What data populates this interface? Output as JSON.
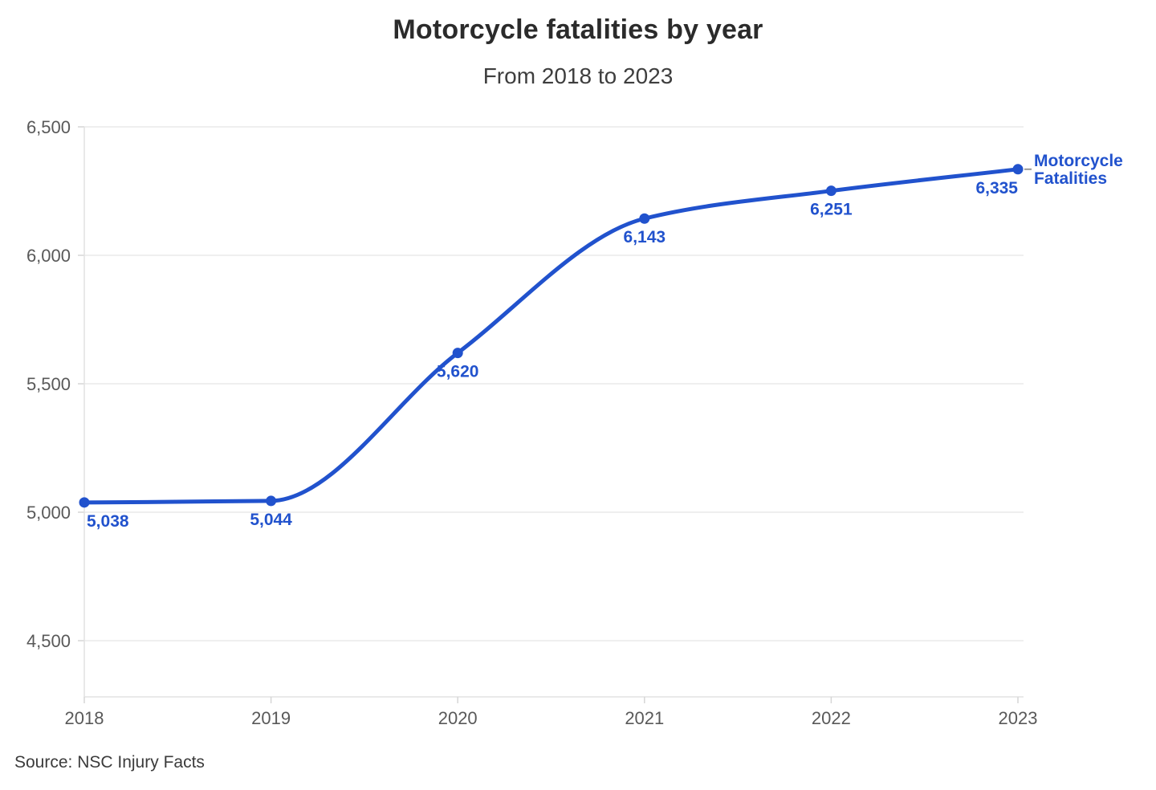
{
  "header": {
    "title": "Motorcycle fatalities by year",
    "subtitle": "From 2018 to 2023"
  },
  "footer": {
    "source": "Source: NSC Injury Facts"
  },
  "chart_data": {
    "type": "line",
    "title": "Motorcycle fatalities by year",
    "subtitle": "From 2018 to 2023",
    "categories": [
      "2018",
      "2019",
      "2020",
      "2021",
      "2022",
      "2023"
    ],
    "series": [
      {
        "name": "Motorcycle Fatalities",
        "name_lines": [
          "Motorcycle",
          "Fatalities"
        ],
        "values": [
          5038,
          5044,
          5620,
          6143,
          6251,
          6335
        ],
        "point_labels": [
          "5,038",
          "5,044",
          "5,620",
          "6,143",
          "6,251",
          "6,335"
        ],
        "color": "#2152cd"
      }
    ],
    "xlabel": "",
    "ylabel": "",
    "y_ticks": {
      "values": [
        6500,
        6000,
        5500,
        5000,
        4500
      ],
      "labels": [
        "6,500",
        "6,000",
        "5,500",
        "5,000",
        "4,500"
      ]
    },
    "ylim": [
      4280,
      6500
    ],
    "grid": "horizontal-only",
    "legend_position": "end-of-line",
    "source": "Source: NSC Injury Facts",
    "colors": {
      "line": "#2152cd",
      "point": "#2152cd",
      "data_label": "#2152cd",
      "series_label": "#2152cd",
      "grid_line": "#eaeaea",
      "axis_line": "#e2e2e2",
      "tick_mark": "#d6d6d6",
      "connector_dash": "#979797",
      "axis_text": "#595959",
      "title": "#2b2b2b",
      "subtitle": "#3e3e3e",
      "source": "#3b3b3b",
      "background": "#ffffff"
    }
  }
}
